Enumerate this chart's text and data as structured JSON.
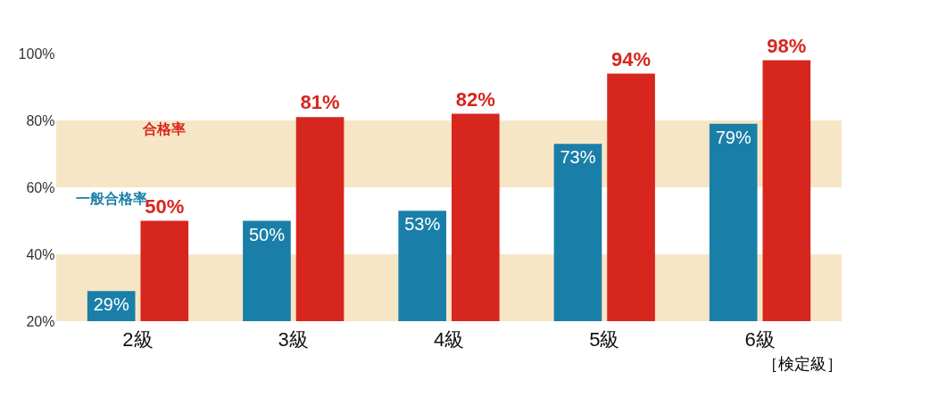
{
  "chart_data": {
    "type": "bar",
    "xlabel": "［検定級］",
    "categories": [
      "2級",
      "3級",
      "4級",
      "5級",
      "6級"
    ],
    "series": [
      {
        "name": "一般合格率",
        "color": "#1a7fa8",
        "values": [
          29,
          50,
          53,
          73,
          79
        ],
        "value_labels": [
          "29%",
          "50%",
          "53%",
          "73%",
          "79%"
        ]
      },
      {
        "name": "合格率",
        "color": "#d7261e",
        "values": [
          50,
          81,
          82,
          94,
          98
        ],
        "value_labels": [
          "50%",
          "81%",
          "82%",
          "94%",
          "98%"
        ]
      }
    ],
    "ylim": [
      20,
      100
    ],
    "yticks": [
      {
        "value": 20,
        "label": "20%"
      },
      {
        "value": 40,
        "label": "40%"
      },
      {
        "value": 60,
        "label": "60%"
      },
      {
        "value": 80,
        "label": "80%"
      },
      {
        "value": 100,
        "label": "100%"
      }
    ],
    "bands": [
      {
        "axis": "y",
        "from": 20,
        "to": 40,
        "color": "#f6e6c6"
      },
      {
        "axis": "y",
        "from": 60,
        "to": 80,
        "color": "#f6e6c6"
      }
    ],
    "grid": false,
    "legend": false
  }
}
